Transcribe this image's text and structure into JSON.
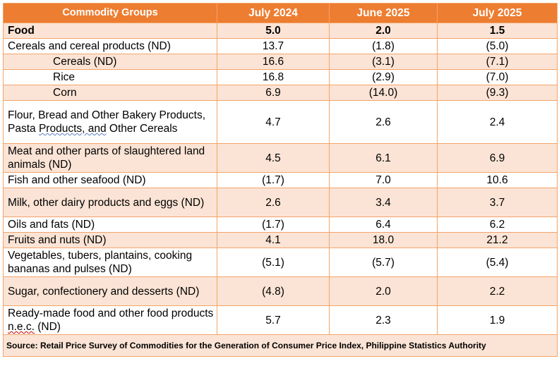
{
  "table": {
    "headers": [
      "Commodity Groups",
      "July 2024",
      "June 2025",
      "July 2025"
    ],
    "rows": [
      {
        "label": "Food",
        "v1": "5.0",
        "v2": "2.0",
        "v3": "1.5"
      },
      {
        "label": "Cereals and cereal products (ND)",
        "v1": "13.7",
        "v2": "(1.8)",
        "v3": "(5.0)"
      },
      {
        "label": "Cereals (ND)",
        "v1": "16.6",
        "v2": "(3.1)",
        "v3": "(7.1)"
      },
      {
        "label": "Rice",
        "v1": "16.8",
        "v2": "(2.9)",
        "v3": "(7.0)"
      },
      {
        "label": "Corn",
        "v1": "6.9",
        "v2": "(14.0)",
        "v3": "(9.3)"
      },
      {
        "label_a": "Flour, Bread and Other Bakery Products, Pasta ",
        "label_b": "Products,  and",
        "label_c": " Other Cereals",
        "v1": "4.7",
        "v2": "2.6",
        "v3": "2.4"
      },
      {
        "label": "Meat and other parts of slaughtered land animals (ND)",
        "v1": "4.5",
        "v2": "6.1",
        "v3": "6.9"
      },
      {
        "label": "Fish and other seafood (ND)",
        "v1": "(1.7)",
        "v2": "7.0",
        "v3": "10.6"
      },
      {
        "label": "Milk, other dairy products and eggs (ND)",
        "v1": "2.6",
        "v2": "3.4",
        "v3": "3.7"
      },
      {
        "label": "Oils and fats (ND)",
        "v1": "(1.7)",
        "v2": "6.4",
        "v3": "6.2"
      },
      {
        "label": "Fruits and nuts (ND)",
        "v1": "4.1",
        "v2": "18.0",
        "v3": "21.2"
      },
      {
        "label": "Vegetables, tubers, plantains, cooking bananas and pulses (ND)",
        "v1": "(5.1)",
        "v2": "(5.7)",
        "v3": "(5.4)"
      },
      {
        "label": "Sugar, confectionery and desserts (ND)",
        "v1": "(4.8)",
        "v2": "2.0",
        "v3": "2.2"
      },
      {
        "label_a": "Ready-made food and other food products ",
        "label_b": "n.e.c.",
        "label_c": " (ND)",
        "v1": "5.7",
        "v2": "2.3",
        "v3": "1.9"
      }
    ],
    "source": "Source: Retail Price Survey of Commodities for the Generation of Consumer Price Index, Philippine Statistics Authority"
  },
  "colors": {
    "header_bg": "#ed7d31",
    "header_text": "#ffffff",
    "shade": "#fbe4d5",
    "border": "#f4a36a"
  }
}
